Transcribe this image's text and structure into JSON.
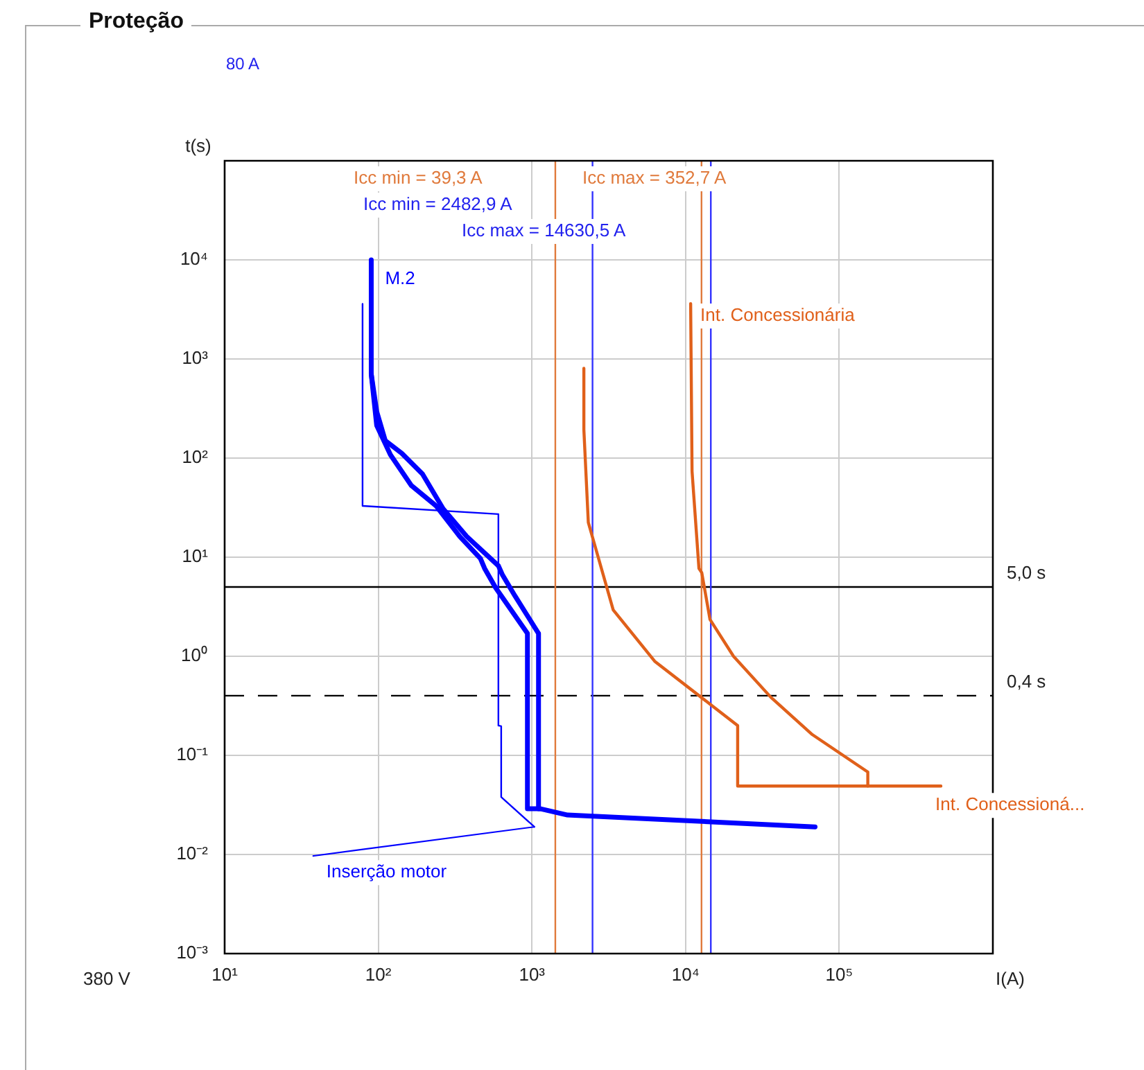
{
  "chart_data": {
    "type": "line",
    "title": "Proteção",
    "subtitle": "80 A",
    "xlabel": "I(A)",
    "ylabel": "t(s)",
    "log": "xy",
    "grid": true,
    "legend": false,
    "marker": "none",
    "line_style": "solid",
    "xlim": [
      10,
      1000000
    ],
    "ylim": [
      0.001,
      100000
    ],
    "xticks": [
      {
        "value": 10,
        "label": "10¹"
      },
      {
        "value": 100,
        "label": "10²"
      },
      {
        "value": 1000,
        "label": "10³"
      },
      {
        "value": 10000,
        "label": "10⁴"
      },
      {
        "value": 100000,
        "label": "10⁵"
      },
      {
        "value": 1000000,
        "label": null
      }
    ],
    "yticks": [
      {
        "value": 0.001,
        "label": "10⁻³"
      },
      {
        "value": 0.01,
        "label": "10⁻²"
      },
      {
        "value": 0.1,
        "label": "10⁻¹"
      },
      {
        "value": 1,
        "label": "10⁰"
      },
      {
        "value": 10,
        "label": "10¹"
      },
      {
        "value": 100,
        "label": "10²"
      },
      {
        "value": 1000,
        "label": "10³"
      },
      {
        "value": 10000,
        "label": "10⁴"
      },
      {
        "value": 100000,
        "label": null
      }
    ],
    "series": [
      {
        "name": "M.2",
        "color": "#0000ff",
        "x": [
          90,
          90,
          97.7,
          111,
          142,
          194,
          264,
          376,
          605,
          644,
          776,
          1104,
          1104,
          1127,
          1706,
          69660
        ],
        "values": [
          10000,
          702,
          294,
          150,
          112,
          69,
          30.9,
          16.2,
          8.2,
          6.6,
          4.06,
          1.7,
          0.029,
          0.029,
          0.025,
          0.019
        ]
      },
      {
        "color": "#0000ff",
        "x": [
          90,
          97.7,
          120,
          164,
          238,
          339,
          462,
          492,
          581,
          935,
          935,
          1127
        ],
        "values": [
          702,
          213,
          108,
          53,
          32.9,
          16.2,
          9.7,
          7.7,
          4.9,
          1.7,
          0.029,
          0.029
        ]
      },
      {
        "name": "Inserção motor",
        "color": "#0000ff",
        "x": [
          79,
          79,
          605,
          605,
          631,
          631,
          1038
        ],
        "values": [
          3600,
          32.9,
          27.2,
          0.2,
          0.197,
          0.038,
          0.019
        ]
      },
      {
        "name": "Int. Concessioná...",
        "color": "#e0601a",
        "x": [
          2178,
          2178,
          2328,
          3381,
          6295,
          21830,
          21830,
          459000
        ],
        "values": [
          805,
          194,
          22.4,
          2.94,
          0.89,
          0.2,
          0.049,
          0.049
        ]
      },
      {
        "name": "Int. Concessionária",
        "color": "#e0601a",
        "x": [
          10790,
          11020,
          12220,
          12740,
          14420,
          20510,
          35900,
          66840,
          153500,
          153500
        ],
        "values": [
          3620,
          73.6,
          7.7,
          7.0,
          2.35,
          1.0,
          0.386,
          0.162,
          0.068,
          0.049
        ]
      }
    ],
    "ref_lines": [
      {
        "axis": "y",
        "value": 5,
        "label": "5,0 s",
        "color": "#000000",
        "line_style": "solid"
      },
      {
        "axis": "y",
        "value": 0.4,
        "label": "0,4 s",
        "color": "#000000",
        "line_style": "dashed"
      },
      {
        "axis": "x",
        "value": 1420,
        "color": "#e07a3c",
        "line_style": "solid"
      },
      {
        "axis": "x",
        "value": 2480,
        "color": "#3333ff",
        "line_style": "solid"
      },
      {
        "axis": "x",
        "value": 12700,
        "color": "#e07a3c",
        "line_style": "solid"
      },
      {
        "axis": "x",
        "value": 14600,
        "color": "#3333ff",
        "line_style": "solid"
      }
    ],
    "annotations": [
      "Icc min = 39,3 A",
      "Icc min = 2482,9 A",
      "Icc max = 352,7 A",
      "Icc max = 14630,5 A",
      "380 V"
    ]
  }
}
